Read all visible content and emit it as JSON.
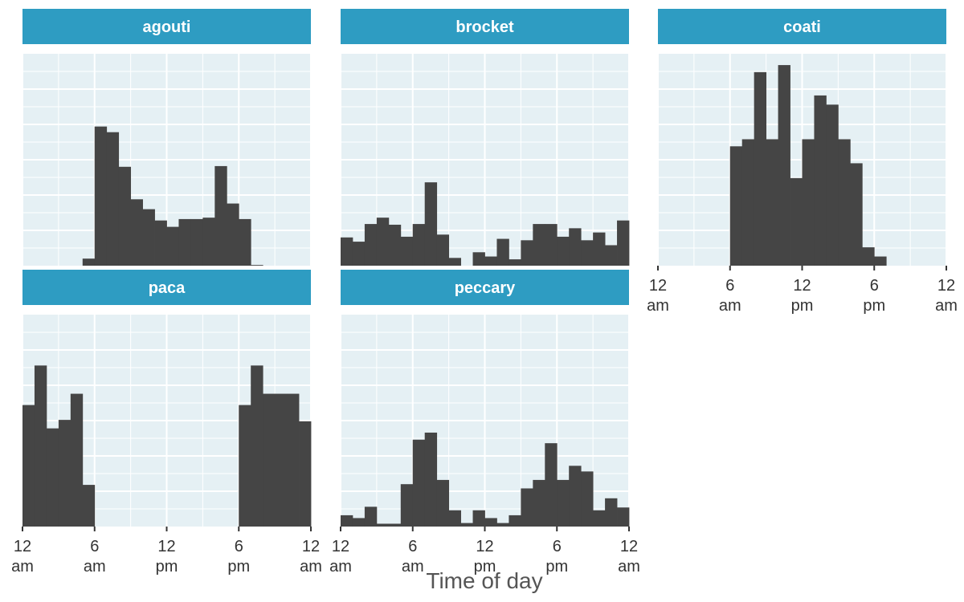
{
  "chart_data": {
    "type": "bar",
    "xlabel": "Time of day",
    "ylabel": "",
    "x_range_hours": [
      0,
      24
    ],
    "bin_width_hours": 1,
    "x_ticks": [
      {
        "hour": 0,
        "line1": "12",
        "line2": "am"
      },
      {
        "hour": 6,
        "line1": "6",
        "line2": "am"
      },
      {
        "hour": 12,
        "line1": "12",
        "line2": "pm"
      },
      {
        "hour": 18,
        "line1": "6",
        "line2": "pm"
      },
      {
        "hour": 24,
        "line1": "12",
        "line2": "am"
      }
    ],
    "y_axis_labels": "none",
    "grid": true,
    "colors": {
      "strip": "#2e9cc2",
      "panel": "#e5f0f4",
      "bar": "#454545"
    },
    "panels": [
      {
        "name": "agouti",
        "values": [
          0,
          0,
          0,
          0,
          0,
          1,
          19.7,
          18.9,
          14,
          9.4,
          8,
          6.4,
          5.5,
          6.6,
          6.6,
          6.8,
          14.1,
          8.8,
          6.6,
          0.1,
          0,
          0,
          0,
          0
        ]
      },
      {
        "name": "brocket",
        "values": [
          4,
          3.4,
          5.9,
          6.8,
          5.8,
          4.1,
          5.9,
          11.8,
          4.4,
          1.1,
          0,
          1.9,
          1.3,
          3.8,
          0.9,
          3.6,
          5.9,
          5.9,
          4.1,
          5.3,
          3.6,
          4.7,
          2.9,
          6.4
        ]
      },
      {
        "name": "coati",
        "values": [
          0,
          0,
          0,
          0,
          0,
          0,
          16.9,
          17.9,
          27.4,
          17.9,
          28.4,
          12.4,
          17.9,
          24.1,
          22.8,
          17.9,
          14.5,
          2.6,
          1.3,
          0,
          0,
          0,
          0,
          0
        ]
      },
      {
        "name": "paca",
        "values": [
          17.2,
          22.8,
          13.9,
          15.1,
          18.8,
          5.9,
          0,
          0,
          0,
          0,
          0,
          0,
          0,
          0,
          0,
          0,
          0,
          0,
          17.2,
          22.8,
          18.8,
          18.8,
          18.8,
          14.9
        ]
      },
      {
        "name": "peccary",
        "values": [
          1.6,
          1.2,
          2.8,
          0.4,
          0.4,
          6,
          12.3,
          13.3,
          6.6,
          2.3,
          0.5,
          2.3,
          1.2,
          0.5,
          1.6,
          5.4,
          6.6,
          11.8,
          6.6,
          8.6,
          7.8,
          2.3,
          4,
          2.7
        ]
      }
    ]
  }
}
